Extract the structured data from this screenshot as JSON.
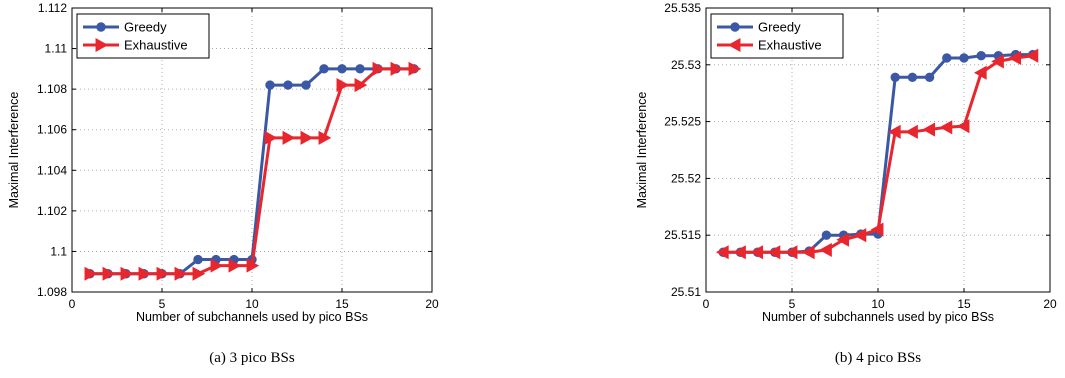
{
  "chart_data": [
    {
      "type": "line",
      "caption": "(a) 3 pico BSs",
      "xlabel": "Number of subchannels used by pico BSs",
      "ylabel": "Maximal Interference",
      "xlim": [
        0,
        20
      ],
      "ylim": [
        1.098,
        1.112
      ],
      "xticks": [
        0,
        5,
        10,
        15,
        20
      ],
      "xtick_labels": [
        "0",
        "5",
        "10",
        "15",
        "20"
      ],
      "yticks": [
        1.098,
        1.1,
        1.102,
        1.104,
        1.106,
        1.108,
        1.11,
        1.112
      ],
      "ytick_labels": [
        "1.098",
        "1.1",
        "1.102",
        "1.104",
        "1.106",
        "1.108",
        "1.11",
        "1.112"
      ],
      "grid": true,
      "legend_position": "top-left",
      "x": [
        1,
        2,
        3,
        4,
        5,
        6,
        7,
        8,
        9,
        10,
        11,
        12,
        13,
        14,
        15,
        16,
        17,
        18,
        19
      ],
      "series": [
        {
          "name": "Greedy",
          "color": "#3b58a5",
          "marker": "circle",
          "values": [
            1.0989,
            1.0989,
            1.0989,
            1.0989,
            1.0989,
            1.0989,
            1.0996,
            1.0996,
            1.0996,
            1.0996,
            1.1082,
            1.1082,
            1.1082,
            1.109,
            1.109,
            1.109,
            1.109,
            1.109,
            1.109
          ]
        },
        {
          "name": "Exhaustive",
          "color": "#e8262e",
          "marker": "triangle-right",
          "values": [
            1.0989,
            1.0989,
            1.0989,
            1.0989,
            1.0989,
            1.0989,
            1.0989,
            1.0993,
            1.0993,
            1.0993,
            1.1056,
            1.1056,
            1.1056,
            1.1056,
            1.1082,
            1.1082,
            1.109,
            1.109,
            1.109
          ]
        }
      ]
    },
    {
      "type": "line",
      "caption": "(b) 4 pico BSs",
      "xlabel": "Number of subchannels used by pico BSs",
      "ylabel": "Maximal Interference",
      "xlim": [
        0,
        20
      ],
      "ylim": [
        25.51,
        25.535
      ],
      "xticks": [
        0,
        5,
        10,
        15,
        20
      ],
      "xtick_labels": [
        "0",
        "5",
        "10",
        "15",
        "20"
      ],
      "yticks": [
        25.51,
        25.515,
        25.52,
        25.525,
        25.53,
        25.535
      ],
      "ytick_labels": [
        "25.51",
        "25.515",
        "25.52",
        "25.525",
        "25.53",
        "25.535"
      ],
      "grid": true,
      "legend_position": "top-left",
      "x": [
        1,
        2,
        3,
        4,
        5,
        6,
        7,
        8,
        9,
        10,
        11,
        12,
        13,
        14,
        15,
        16,
        17,
        18,
        19
      ],
      "series": [
        {
          "name": "Greedy",
          "color": "#3b58a5",
          "marker": "circle",
          "values": [
            25.5135,
            25.5135,
            25.5135,
            25.5135,
            25.5135,
            25.5136,
            25.515,
            25.515,
            25.5151,
            25.5151,
            25.5289,
            25.5289,
            25.5289,
            25.5306,
            25.5306,
            25.5308,
            25.5308,
            25.5309,
            25.5309
          ]
        },
        {
          "name": "Exhaustive",
          "color": "#e8262e",
          "marker": "triangle-left",
          "values": [
            25.5135,
            25.5135,
            25.5135,
            25.5135,
            25.5135,
            25.5135,
            25.5137,
            25.5146,
            25.515,
            25.5155,
            25.5241,
            25.5241,
            25.5243,
            25.5245,
            25.5246,
            25.5293,
            25.5303,
            25.5306,
            25.5308
          ]
        }
      ]
    }
  ]
}
